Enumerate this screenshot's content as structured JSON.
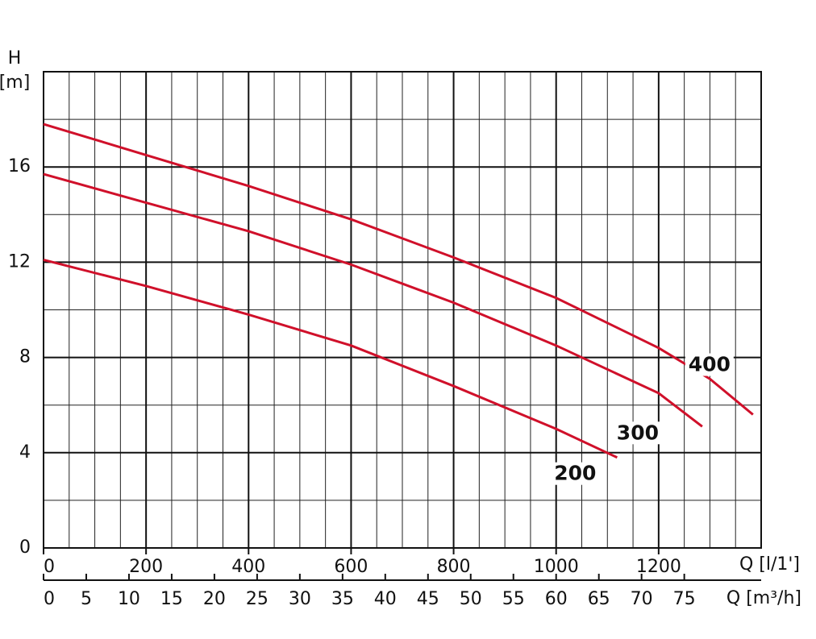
{
  "chart_data": {
    "type": "line",
    "y_label": "H",
    "y_unit": "[m]",
    "x_label": "Q [l/1']",
    "x2_label": "Q [m³/h]",
    "xlim": [
      0,
      1400
    ],
    "xticks": [
      0,
      200,
      400,
      600,
      800,
      1000,
      1200
    ],
    "x2lim": [
      0,
      84
    ],
    "x2ticks": [
      0,
      5,
      10,
      15,
      20,
      25,
      30,
      35,
      40,
      45,
      50,
      55,
      60,
      65,
      70,
      75
    ],
    "ylim": [
      0,
      20
    ],
    "yticks": [
      0,
      4,
      8,
      12,
      16
    ],
    "grid": true,
    "series": [
      {
        "name": "400",
        "color": "#d0102a",
        "x": [
          0,
          200,
          400,
          600,
          800,
          1000,
          1200,
          1300,
          1384
        ],
        "values": [
          17.8,
          16.5,
          15.2,
          13.8,
          12.2,
          10.5,
          8.4,
          7.1,
          5.6
        ]
      },
      {
        "name": "300",
        "color": "#d0102a",
        "x": [
          0,
          200,
          400,
          600,
          800,
          1000,
          1200,
          1285
        ],
        "values": [
          15.7,
          14.5,
          13.3,
          11.9,
          10.3,
          8.5,
          6.5,
          5.1
        ]
      },
      {
        "name": "200",
        "color": "#d0102a",
        "x": [
          0,
          200,
          400,
          600,
          800,
          1000,
          1119
        ],
        "values": [
          12.1,
          11.0,
          9.8,
          8.5,
          6.8,
          5.0,
          3.8
        ]
      }
    ]
  }
}
